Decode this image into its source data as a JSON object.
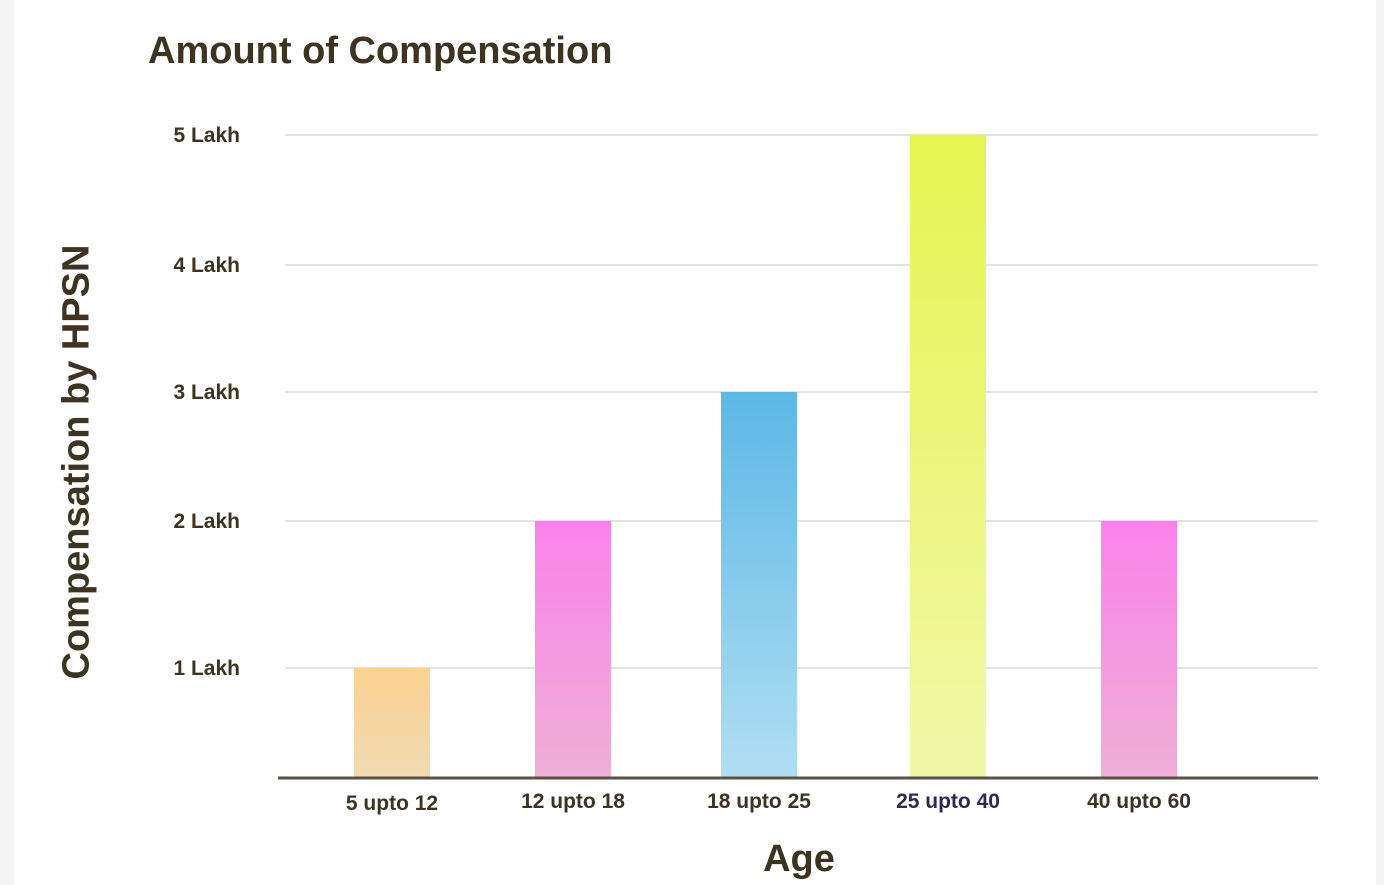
{
  "chart_data": {
    "type": "bar",
    "title": "Amount of Compensation",
    "xlabel": "Age",
    "ylabel": "Compensation by HPSN",
    "categories": [
      "5 upto 12",
      "12 upto 18",
      "18 upto 25",
      "25 upto 40",
      "40 upto 60"
    ],
    "values": [
      1,
      2,
      3,
      5,
      2
    ],
    "unit": "Lakh",
    "ylim": [
      0,
      5
    ],
    "yticks": [
      {
        "value": 1,
        "label": "1 Lakh"
      },
      {
        "value": 2,
        "label": "2 Lakh"
      },
      {
        "value": 3,
        "label": "3 Lakh"
      },
      {
        "value": 4,
        "label": "4 Lakh"
      },
      {
        "value": 5,
        "label": "5 Lakh"
      }
    ],
    "grid": true,
    "bar_colors": [
      {
        "top": "#fbd18f",
        "bottom": "#f0dbb3"
      },
      {
        "top": "#fa82ea",
        "bottom": "#efb0d6"
      },
      {
        "top": "#5cb8e6",
        "bottom": "#b0def2"
      },
      {
        "top": "#e5f550",
        "bottom": "#f0f8a8"
      },
      {
        "top": "#fa82ea",
        "bottom": "#efb0d6"
      }
    ],
    "highlight_category": "25 upto 40",
    "colors": {
      "text": "#3d3320",
      "highlight_text": "#2c2a55",
      "grid": "#e3e3e3",
      "axis": "#5b5245"
    }
  }
}
